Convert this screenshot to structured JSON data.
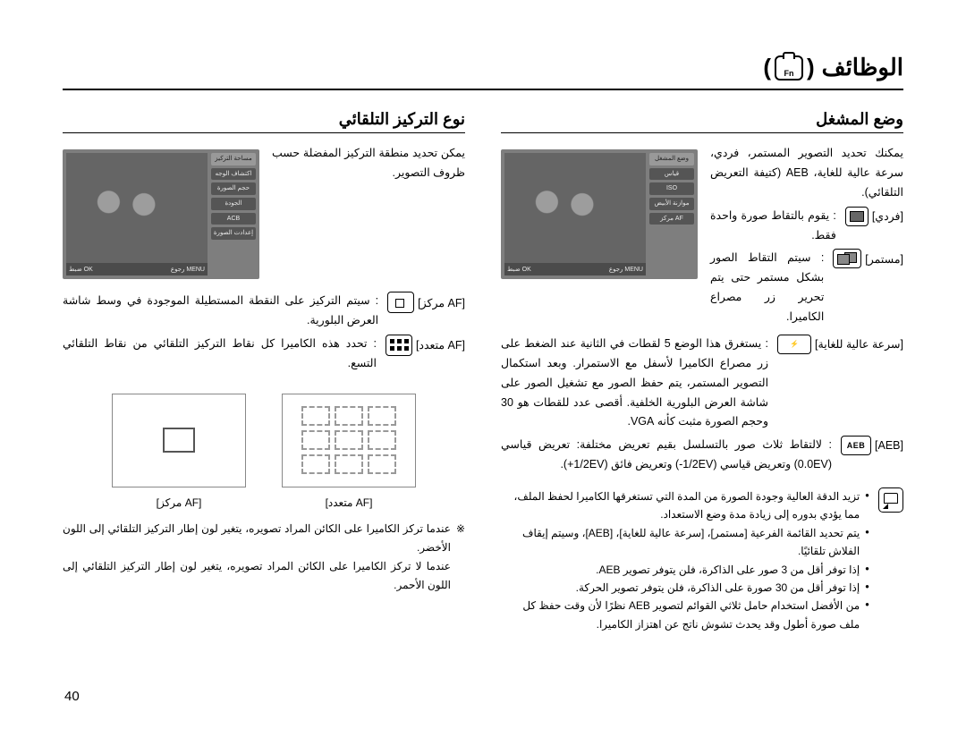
{
  "page_number": "40",
  "header": {
    "title": "الوظائف",
    "paren_open": "(",
    "paren_close": ")"
  },
  "right_col": {
    "title": "وضع المشغل",
    "intro": "يمكنك تحديد التصوير المستمر، فردي، سرعة عالية للغاية، AEB (كتيفة التعريض التلقائي).",
    "modes": {
      "single": {
        "label": "[فردي]",
        "desc": ": يقوم بالتقاط صورة واحدة فقط."
      },
      "cont": {
        "label": "[مستمر]",
        "desc": ": سيتم التقاط الصور بشكل مستمر حتى يتم تحرير زر مصراع الكاميرا."
      },
      "burst": {
        "label": "[سرعة عالية للغاية]",
        "icon_text": "⚡",
        "desc": ": يستغرق هذا الوضع 5 لقطات في الثانية عند الضغط على زر مصراع الكاميرا لأسفل مع الاستمرار. وبعد استكمال التصوير المستمر، يتم حفظ الصور مع تشغيل الصور على شاشة العرض البلورية الخلفية. أقصى عدد للقطات هو 30 وحجم الصورة مثبت كأنه VGA."
      },
      "aeb": {
        "label": "[AEB]",
        "icon_text": "AEB",
        "desc": ": لالتقاط ثلاث صور بالتسلسل بقيم تعريض مختلفة: تعريض قياسي (0.0EV) وتعريض قياسي (‎-1/2EV) وتعريض فائق (‎+1/2EV)."
      }
    },
    "notes": [
      "تزيد الدقة العالية وجودة الصورة من المدة التي تستغرقها الكاميرا لحفظ الملف، مما يؤدي بدوره إلى زيادة مدة وضع الاستعداد.",
      "يتم تحديد القائمة الفرعية [مستمر]، [سرعة عالية للغاية]، [AEB]، وسيتم إيقاف الفلاش تلقائيًا.",
      "إذا توفر أقل من 3 صور على الذاكرة، فلن يتوفر تصوير AEB.",
      "إذا توفر أقل من 30 صورة على الذاكرة، فلن يتوفر تصوير الحركة.",
      "من الأفضل استخدام حامل ثلاثي القوائم لتصوير AEB نظرًا لأن وقت حفظ كل ملف صورة أطول وقد يحدث تشوش ناتج عن اهتزاز الكاميرا."
    ],
    "screenshot": {
      "sidebar": [
        "وضع المشغل",
        "قياس",
        "ISO",
        "موازنة الأبيض",
        "AF مركز"
      ],
      "topbar": [
        "☐",
        "☐",
        "☐",
        "☐",
        "☐",
        "☐"
      ],
      "bottom_left": "MENU رجوع",
      "bottom_right": "OK ضبط"
    }
  },
  "left_col": {
    "title": "نوع التركيز التلقائي",
    "intro": "يمكن تحديد منطقة التركيز المفضلة حسب ظروف التصوير.",
    "modes": {
      "center": {
        "label": "[AF مركز]",
        "desc": ": سيتم التركيز على النقطة المستطيلة الموجودة في وسط شاشة العرض البلورية."
      },
      "multi": {
        "label": "[AF متعدد]",
        "desc": ": تحدد هذه الكاميرا كل نقاط التركيز التلقائي من نقاط التلقائي التسع."
      }
    },
    "diagram_labels": {
      "center": "[AF مركز]",
      "multi": "[AF متعدد]"
    },
    "footnote1": "عندما تركز الكاميرا على الكائن المراد تصويره، يتغير لون إطار التركيز التلقائي إلى اللون الأخضر.",
    "footnote2": "عندما لا تركز الكاميرا على الكائن المراد تصويره، يتغير لون إطار التركيز التلقائي إلى اللون الأحمر.",
    "screenshot": {
      "sidebar": [
        "مساحة التركيز",
        "اكتشاف الوجه",
        "حجم الصورة",
        "الجودة",
        "ACB",
        "إعدادت الصورة"
      ],
      "topbar": [
        "☐",
        "☐",
        "☐",
        "☐",
        "☐",
        "☐"
      ],
      "bottom_left": "MENU رجوع",
      "bottom_right": "OK ضبط"
    }
  },
  "style": {
    "page_bg": "#ffffff",
    "text_color": "#000000",
    "screenshot_bg": "#7e7e7e",
    "dash_color": "#999999"
  }
}
